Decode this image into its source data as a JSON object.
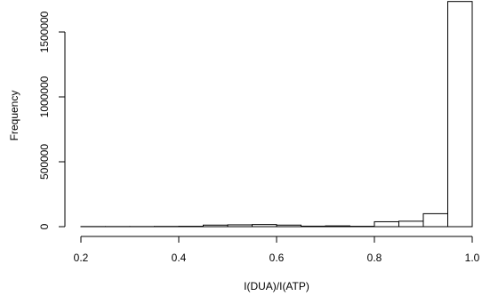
{
  "chart_data": {
    "type": "bar",
    "title": "",
    "xlabel": "I(DUA)/I(ATP)",
    "ylabel": "Frequency",
    "xlim": [
      0.2,
      1.0
    ],
    "ylim": [
      0,
      1750000
    ],
    "xticks": [
      0.2,
      0.4,
      0.6,
      0.8,
      1.0
    ],
    "xtick_labels": [
      "0.2",
      "0.4",
      "0.6",
      "0.8",
      "1.0"
    ],
    "yticks": [
      0,
      500000,
      1000000,
      1500000
    ],
    "ytick_labels": [
      "0",
      "500000",
      "1000000",
      "1500000"
    ],
    "bin_width": 0.05,
    "bins": [
      {
        "x0": 0.2,
        "x1": 0.25,
        "value": 1000
      },
      {
        "x0": 0.25,
        "x1": 0.3,
        "value": 1000
      },
      {
        "x0": 0.3,
        "x1": 0.35,
        "value": 1000
      },
      {
        "x0": 0.35,
        "x1": 0.4,
        "value": 2000
      },
      {
        "x0": 0.4,
        "x1": 0.45,
        "value": 3000
      },
      {
        "x0": 0.45,
        "x1": 0.5,
        "value": 12000
      },
      {
        "x0": 0.5,
        "x1": 0.55,
        "value": 14000
      },
      {
        "x0": 0.55,
        "x1": 0.6,
        "value": 16000
      },
      {
        "x0": 0.6,
        "x1": 0.65,
        "value": 12000
      },
      {
        "x0": 0.65,
        "x1": 0.7,
        "value": 4000
      },
      {
        "x0": 0.7,
        "x1": 0.75,
        "value": 6000
      },
      {
        "x0": 0.75,
        "x1": 0.8,
        "value": 3000
      },
      {
        "x0": 0.8,
        "x1": 0.85,
        "value": 38000
      },
      {
        "x0": 0.85,
        "x1": 0.9,
        "value": 42000
      },
      {
        "x0": 0.9,
        "x1": 0.95,
        "value": 100000
      },
      {
        "x0": 0.95,
        "x1": 1.0,
        "value": 1735000
      }
    ],
    "grid": false,
    "legend": "none",
    "bar_fill": "#ffffff",
    "bar_stroke": "#000000"
  }
}
